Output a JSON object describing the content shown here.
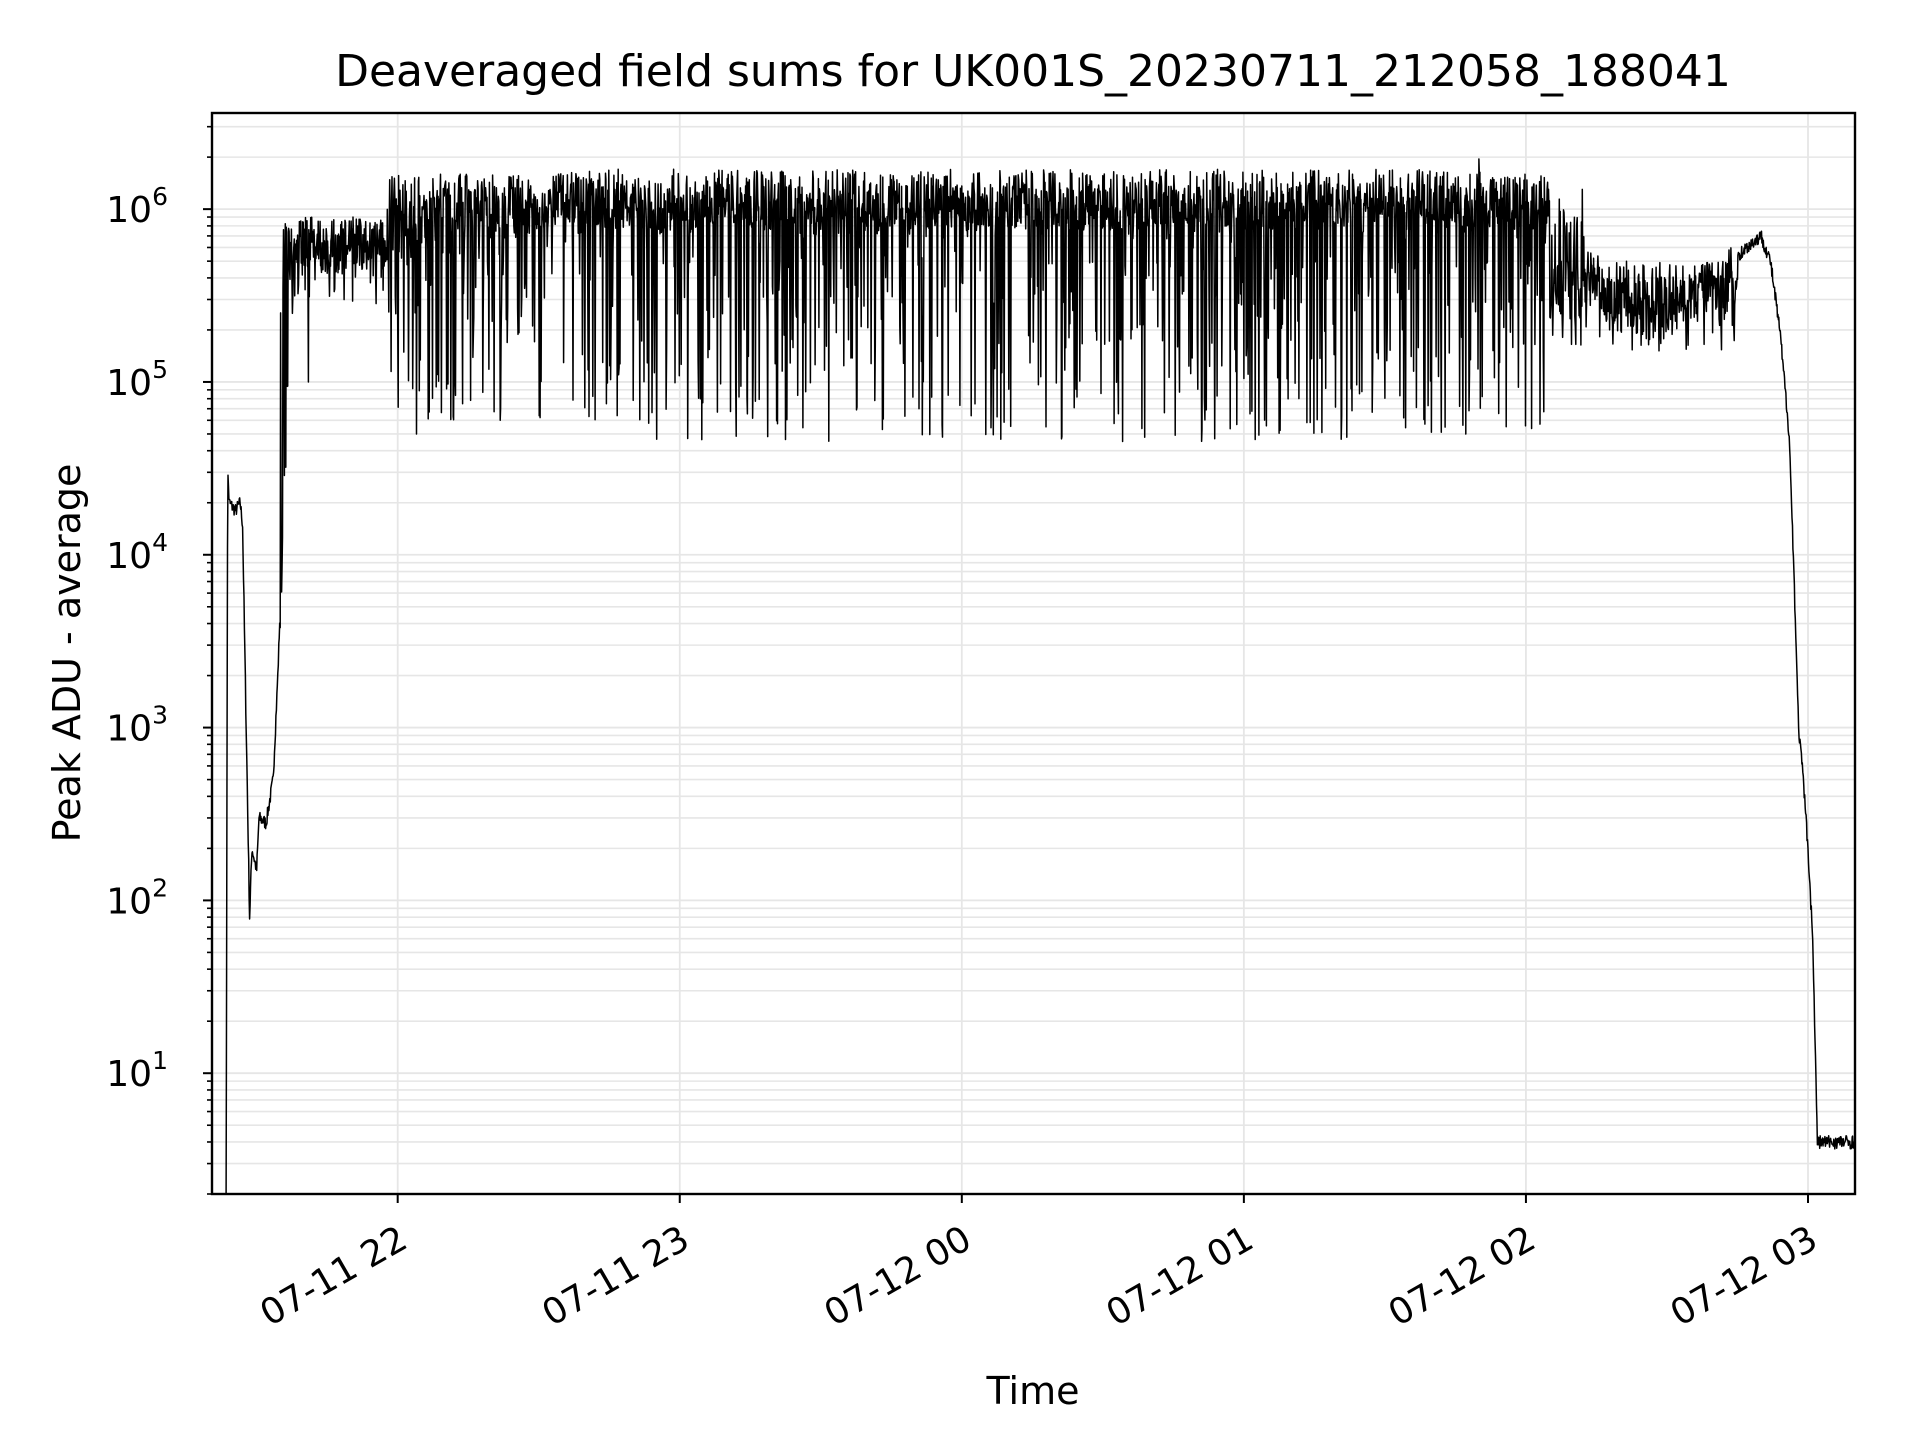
{
  "chart_data": {
    "type": "line",
    "title": "Deaveraged field sums for UK001S_20230711_212058_188041",
    "xlabel": "Time",
    "ylabel": "Peak ADU - average",
    "yscale": "log",
    "ylim": [
      2,
      3600000.0
    ],
    "xlim": [
      "2023-07-11 21:20:30",
      "2023-07-12 03:10:00"
    ],
    "grid": true,
    "grid_minor": true,
    "x_ticks": [
      {
        "value": "2023-07-11 22:00",
        "label": "07-11 22"
      },
      {
        "value": "2023-07-11 23:00",
        "label": "07-11 23"
      },
      {
        "value": "2023-07-12 00:00",
        "label": "07-12 00"
      },
      {
        "value": "2023-07-12 01:00",
        "label": "07-12 01"
      },
      {
        "value": "2023-07-12 02:00",
        "label": "07-12 02"
      },
      {
        "value": "2023-07-12 03:00",
        "label": "07-12 03"
      }
    ],
    "y_ticks": [
      {
        "value": 10,
        "base": "10",
        "exp": "1"
      },
      {
        "value": 100,
        "base": "10",
        "exp": "2"
      },
      {
        "value": 1000,
        "base": "10",
        "exp": "3"
      },
      {
        "value": 10000,
        "base": "10",
        "exp": "4"
      },
      {
        "value": 100000,
        "base": "10",
        "exp": "5"
      },
      {
        "value": 1000000,
        "base": "10",
        "exp": "6"
      }
    ],
    "line_color": "#000000",
    "grid_color": "#e6e6e6",
    "series": [
      {
        "x": [
          "2023-07-11 21:23:30",
          "2023-07-11 21:23:50",
          "2023-07-11 21:24:10",
          "2023-07-11 21:25:30",
          "2023-07-11 21:26:30",
          "2023-07-11 21:27:00",
          "2023-07-11 21:28:30",
          "2023-07-11 21:29:00",
          "2023-07-11 21:30:00",
          "2023-07-11 21:30:30",
          "2023-07-11 21:32:00",
          "2023-07-11 21:33:30",
          "2023-07-11 21:34:30",
          "2023-07-11 21:36:00",
          "2023-07-11 21:37:00",
          "2023-07-11 21:38:00",
          "2023-07-11 21:39:00",
          "2023-07-11 21:40:30",
          "2023-07-11 21:42:00",
          "2023-07-11 21:45:00",
          "2023-07-11 21:50:00",
          "2023-07-11 21:52:00",
          "2023-07-11 21:55:00",
          "2023-07-11 21:58:00",
          "2023-07-11 22:02:00",
          "2023-07-11 22:08:00",
          "2023-07-11 22:15:00",
          "2023-07-11 22:20:00",
          "2023-07-11 22:30:00",
          "2023-07-11 22:40:00",
          "2023-07-11 22:50:00",
          "2023-07-11 22:55:00",
          "2023-07-11 23:05:00",
          "2023-07-11 23:20:00",
          "2023-07-11 23:40:00",
          "2023-07-12 00:00:00",
          "2023-07-12 00:20:00",
          "2023-07-12 00:40:00",
          "2023-07-12 01:00:00",
          "2023-07-12 01:20:00",
          "2023-07-12 01:40:00",
          "2023-07-12 02:00:00",
          "2023-07-12 02:10:00",
          "2023-07-12 02:20:00",
          "2023-07-12 02:30:00",
          "2023-07-12 02:40:00",
          "2023-07-12 02:47:00",
          "2023-07-12 02:50:00",
          "2023-07-12 02:52:00",
          "2023-07-12 02:54:00",
          "2023-07-12 02:56:00",
          "2023-07-12 02:57:00",
          "2023-07-12 02:58:00",
          "2023-07-12 02:59:00",
          "2023-07-12 03:00:00",
          "2023-07-12 03:01:00",
          "2023-07-12 03:02:00",
          "2023-07-12 03:03:00",
          "2023-07-12 03:05:00",
          "2023-07-12 03:08:00",
          "2023-07-12 03:10:00"
        ],
        "y": [
          2,
          30000,
          20000,
          18000,
          20000,
          15000,
          80,
          200,
          150,
          300,
          280,
          500,
          2000,
          30000,
          150000,
          300000,
          550000,
          600000,
          550000,
          600000,
          500000,
          700000,
          600000,
          800000,
          700000,
          900000,
          1000000,
          1000000,
          1100000,
          1200000,
          1100000,
          1000000,
          1000000,
          1000000,
          1000000,
          1000000,
          1000000,
          1000000,
          1000000,
          1000000,
          1000000,
          1000000,
          800000,
          220000,
          250000,
          400000,
          600000,
          700000,
          500000,
          200000,
          50000,
          8000,
          1000,
          500,
          200,
          60,
          4,
          4,
          4,
          4,
          4
        ],
        "noise_segments": [
          {
            "from": "2023-07-11 21:35:00",
            "to": "2023-07-11 21:58:00",
            "min": 250000,
            "max": 900000
          },
          {
            "from": "2023-07-11 21:58:00",
            "to": "2023-07-11 22:40:00",
            "min": 60000,
            "max": 1600000
          },
          {
            "from": "2023-07-11 22:40:00",
            "to": "2023-07-12 02:05:00",
            "min": 45000,
            "max": 1700000
          },
          {
            "from": "2023-07-12 02:05:00",
            "to": "2023-07-12 02:45:00",
            "min": 150000,
            "max": 500000
          }
        ],
        "spikes": [
          {
            "x": "2023-07-11 21:41:00",
            "y": 100000
          },
          {
            "x": "2023-07-11 22:04:00",
            "y": 50000
          },
          {
            "x": "2023-07-12 01:50:00",
            "y": 1950000
          },
          {
            "x": "2023-07-12 02:12:00",
            "y": 1300000
          }
        ]
      }
    ]
  }
}
